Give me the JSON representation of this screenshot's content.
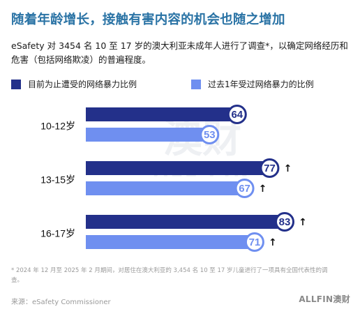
{
  "header": {
    "title": "随着年龄增长，接触有害内容的机会也随之增加",
    "subtitle": "eSafety 对 3454 名 10 至 17 岁的澳大利亚未成年人进行了调查*，以确定网络经历和危害（包括网络欺凌）的普遍程度。"
  },
  "legend": {
    "series_1": "目前为止遭受的网络暴力比例",
    "series_2": "过去1年受过网络暴力的比例"
  },
  "colors": {
    "series_1": "#23308a",
    "series_2": "#6f8ff0",
    "title": "#2a73a5"
  },
  "chart_data": {
    "type": "bar",
    "orientation": "horizontal",
    "categories": [
      "10-12岁",
      "13-15岁",
      "16-17岁"
    ],
    "series": [
      {
        "name": "目前为止遭受的网络暴力比例",
        "values": [
          64,
          77,
          83
        ],
        "increase_marker": [
          false,
          true,
          true
        ]
      },
      {
        "name": "过去1年受过网络暴力的比例",
        "values": [
          53,
          67,
          71
        ],
        "increase_marker": [
          false,
          true,
          true
        ]
      }
    ],
    "xlim": [
      0,
      100
    ],
    "title": "",
    "xlabel": "",
    "ylabel": "",
    "grid": false,
    "legend_position": "top"
  },
  "watermark": {
    "big": "澳财",
    "small": "ALL FIN"
  },
  "footnote": "* 2024 年 12 月至 2025 年 2 月期间，对居住在澳大利亚的 3,454 名 10 至 17 岁儿童进行了一项具有全国代表性的调查。",
  "source": "来源：eSafety Commissioner",
  "logo": "ALLFIN澳财"
}
